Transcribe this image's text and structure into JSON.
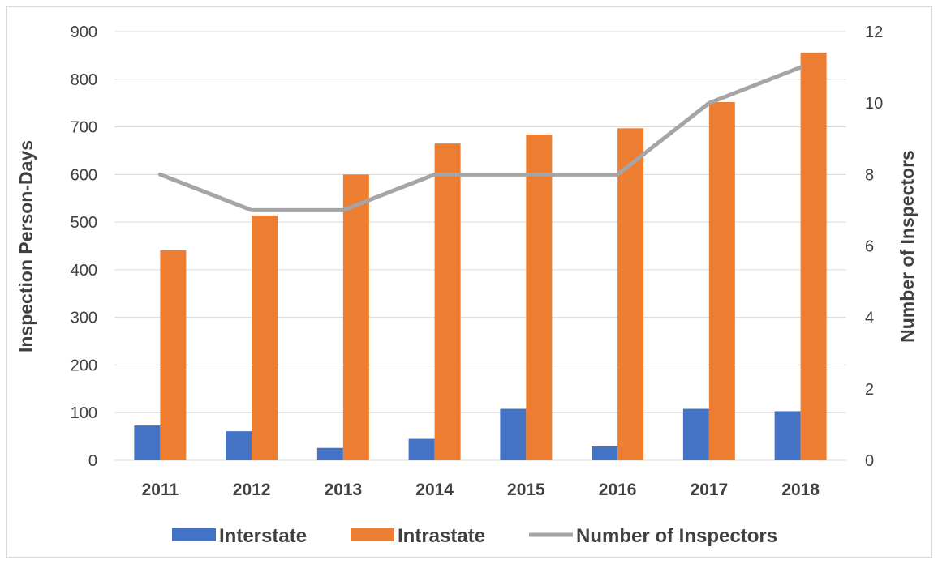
{
  "chart_data": {
    "type": "bar",
    "categories": [
      "2011",
      "2012",
      "2013",
      "2014",
      "2015",
      "2016",
      "2017",
      "2018"
    ],
    "series": [
      {
        "name": "Interstate",
        "type": "bar",
        "axis": "left",
        "color": "#4472C4",
        "values": [
          73,
          61,
          26,
          45,
          108,
          29,
          108,
          103
        ]
      },
      {
        "name": "Intrastate",
        "type": "bar",
        "axis": "left",
        "color": "#ED7D31",
        "values": [
          441,
          514,
          600,
          665,
          684,
          697,
          752,
          856
        ]
      },
      {
        "name": "Number of Inspectors",
        "type": "line",
        "axis": "right",
        "color": "#A5A5A5",
        "values": [
          8,
          7,
          7,
          8,
          8,
          8,
          10,
          11
        ]
      }
    ],
    "ylabel": "Inspection Person-Days",
    "y2label": "Number of Inspectors",
    "ylim": [
      0,
      900
    ],
    "y2lim": [
      0,
      12
    ],
    "yticks": [
      "0",
      "100",
      "200",
      "300",
      "400",
      "500",
      "600",
      "700",
      "800",
      "900"
    ],
    "y2ticks": [
      "0",
      "2",
      "4",
      "6",
      "8",
      "10",
      "12"
    ],
    "grid": true,
    "legend": "bottom"
  }
}
